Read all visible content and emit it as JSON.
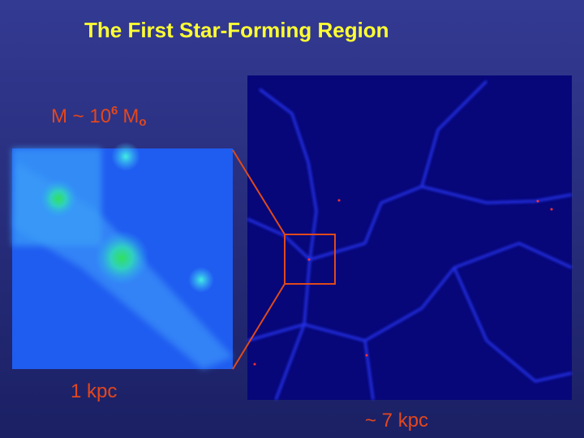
{
  "title": "The First Star-Forming Region",
  "mass_label": {
    "prefix": "M ~ 10",
    "exponent": "6",
    "unit": "M",
    "unit_subscript": "o"
  },
  "left_image_label": "1 kpc",
  "right_image_label": "~ 7 kpc"
}
